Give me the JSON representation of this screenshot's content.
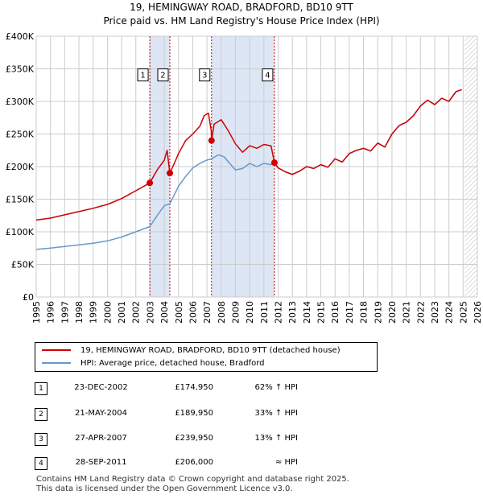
{
  "title_line1": "19, HEMINGWAY ROAD, BRADFORD, BD10 9TT",
  "title_line2": "Price paid vs. HM Land Registry's House Price Index (HPI)",
  "colors": {
    "property": "#cc0000",
    "hpi": "#6699cc",
    "band": "#dde6f5",
    "grid": "#cccccc"
  },
  "chart_data": {
    "type": "line",
    "xlim": [
      1995,
      2026
    ],
    "ylim": [
      0,
      400000
    ],
    "x_ticks": [
      1995,
      1996,
      1997,
      1998,
      1999,
      2000,
      2001,
      2002,
      2003,
      2004,
      2005,
      2006,
      2007,
      2008,
      2009,
      2010,
      2011,
      2012,
      2013,
      2014,
      2015,
      2016,
      2017,
      2018,
      2019,
      2020,
      2021,
      2022,
      2023,
      2024,
      2025,
      2026
    ],
    "y_ticks": [
      0,
      50000,
      100000,
      150000,
      200000,
      250000,
      300000,
      350000,
      400000
    ],
    "y_tick_labels": [
      "£0",
      "£50K",
      "£100K",
      "£150K",
      "£200K",
      "£250K",
      "£300K",
      "£350K",
      "£400K"
    ],
    "grid": true,
    "forecast_start": 2025.1,
    "shaded_ranges": [
      [
        2002.98,
        2004.39
      ],
      [
        2007.32,
        2011.74
      ]
    ],
    "series": [
      {
        "name": "19, HEMINGWAY ROAD, BRADFORD, BD10 9TT (detached house)",
        "color": "#cc0000",
        "points": [
          [
            1995.0,
            118000
          ],
          [
            1996.0,
            121000
          ],
          [
            1997.0,
            126000
          ],
          [
            1998.0,
            131000
          ],
          [
            1999.0,
            136000
          ],
          [
            2000.0,
            142000
          ],
          [
            2001.0,
            151000
          ],
          [
            2002.0,
            163000
          ],
          [
            2002.98,
            174950
          ],
          [
            2003.5,
            195000
          ],
          [
            2004.0,
            210000
          ],
          [
            2004.2,
            225000
          ],
          [
            2004.39,
            189950
          ],
          [
            2004.7,
            205000
          ],
          [
            2005.0,
            220000
          ],
          [
            2005.5,
            240000
          ],
          [
            2006.0,
            250000
          ],
          [
            2006.5,
            262000
          ],
          [
            2006.8,
            278000
          ],
          [
            2007.1,
            282000
          ],
          [
            2007.3,
            255000
          ],
          [
            2007.32,
            239950
          ],
          [
            2007.5,
            265000
          ],
          [
            2008.0,
            272000
          ],
          [
            2008.5,
            255000
          ],
          [
            2009.0,
            235000
          ],
          [
            2009.5,
            222000
          ],
          [
            2010.0,
            232000
          ],
          [
            2010.5,
            228000
          ],
          [
            2011.0,
            234000
          ],
          [
            2011.5,
            232000
          ],
          [
            2011.74,
            206000
          ],
          [
            2012.0,
            198000
          ],
          [
            2012.5,
            192000
          ],
          [
            2013.0,
            188000
          ],
          [
            2013.5,
            193000
          ],
          [
            2014.0,
            200000
          ],
          [
            2014.5,
            197000
          ],
          [
            2015.0,
            203000
          ],
          [
            2015.5,
            199000
          ],
          [
            2016.0,
            212000
          ],
          [
            2016.5,
            207000
          ],
          [
            2017.0,
            220000
          ],
          [
            2017.5,
            225000
          ],
          [
            2018.0,
            228000
          ],
          [
            2018.5,
            224000
          ],
          [
            2019.0,
            236000
          ],
          [
            2019.5,
            230000
          ],
          [
            2020.0,
            250000
          ],
          [
            2020.5,
            263000
          ],
          [
            2021.0,
            268000
          ],
          [
            2021.5,
            278000
          ],
          [
            2022.0,
            293000
          ],
          [
            2022.5,
            302000
          ],
          [
            2023.0,
            295000
          ],
          [
            2023.5,
            305000
          ],
          [
            2024.0,
            300000
          ],
          [
            2024.5,
            315000
          ],
          [
            2024.9,
            318000
          ]
        ]
      },
      {
        "name": "HPI: Average price, detached house, Bradford",
        "color": "#6699cc",
        "points": [
          [
            1995.0,
            73000
          ],
          [
            1996.0,
            75000
          ],
          [
            1997.0,
            77500
          ],
          [
            1998.0,
            80000
          ],
          [
            1999.0,
            82500
          ],
          [
            2000.0,
            86000
          ],
          [
            2001.0,
            92000
          ],
          [
            2002.0,
            100000
          ],
          [
            2002.98,
            108000
          ],
          [
            2003.5,
            125000
          ],
          [
            2004.0,
            140000
          ],
          [
            2004.39,
            143000
          ],
          [
            2005.0,
            170000
          ],
          [
            2005.5,
            185000
          ],
          [
            2006.0,
            198000
          ],
          [
            2006.5,
            205000
          ],
          [
            2007.0,
            210000
          ],
          [
            2007.32,
            212000
          ],
          [
            2007.8,
            218000
          ],
          [
            2008.2,
            215000
          ],
          [
            2008.6,
            205000
          ],
          [
            2009.0,
            195000
          ],
          [
            2009.5,
            197000
          ],
          [
            2010.0,
            205000
          ],
          [
            2010.5,
            200000
          ],
          [
            2011.0,
            205000
          ],
          [
            2011.5,
            203000
          ],
          [
            2011.74,
            205000
          ],
          [
            2012.0,
            198000
          ],
          [
            2012.5,
            192000
          ],
          [
            2013.0,
            188000
          ],
          [
            2013.5,
            193000
          ],
          [
            2014.0,
            200000
          ],
          [
            2014.5,
            197000
          ],
          [
            2015.0,
            203000
          ],
          [
            2015.5,
            199000
          ],
          [
            2016.0,
            212000
          ],
          [
            2016.5,
            207000
          ],
          [
            2017.0,
            220000
          ],
          [
            2017.5,
            225000
          ],
          [
            2018.0,
            228000
          ],
          [
            2018.5,
            224000
          ],
          [
            2019.0,
            236000
          ],
          [
            2019.5,
            230000
          ],
          [
            2020.0,
            250000
          ],
          [
            2020.5,
            263000
          ],
          [
            2021.0,
            268000
          ],
          [
            2021.5,
            278000
          ],
          [
            2022.0,
            293000
          ],
          [
            2022.5,
            302000
          ],
          [
            2023.0,
            295000
          ],
          [
            2023.5,
            305000
          ],
          [
            2024.0,
            300000
          ],
          [
            2024.5,
            315000
          ],
          [
            2024.9,
            318000
          ]
        ]
      }
    ],
    "markers": [
      {
        "label": "1",
        "x": 2002.98,
        "y": 174950,
        "box_y": 340000
      },
      {
        "label": "2",
        "x": 2004.39,
        "y": 189950,
        "box_y": 340000
      },
      {
        "label": "3",
        "x": 2007.32,
        "y": 239950,
        "box_y": 340000
      },
      {
        "label": "4",
        "x": 2011.74,
        "y": 206000,
        "box_y": 340000
      }
    ]
  },
  "legend": {
    "property_label": "19, HEMINGWAY ROAD, BRADFORD, BD10 9TT (detached house)",
    "hpi_label": "HPI: Average price, detached house, Bradford"
  },
  "sales": [
    {
      "num": "1",
      "date": "23-DEC-2002",
      "price": "£174,950",
      "hpi": "62% ↑ HPI"
    },
    {
      "num": "2",
      "date": "21-MAY-2004",
      "price": "£189,950",
      "hpi": "33% ↑ HPI"
    },
    {
      "num": "3",
      "date": "27-APR-2007",
      "price": "£239,950",
      "hpi": "13% ↑ HPI"
    },
    {
      "num": "4",
      "date": "28-SEP-2011",
      "price": "£206,000",
      "hpi": "≈ HPI"
    }
  ],
  "footer": {
    "line1": "Contains HM Land Registry data © Crown copyright and database right 2025.",
    "line2": "This data is licensed under the Open Government Licence v3.0."
  }
}
